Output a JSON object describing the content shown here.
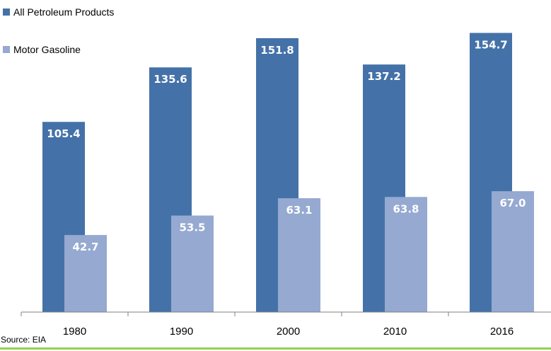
{
  "chart_data": {
    "type": "bar",
    "categories": [
      "1980",
      "1990",
      "2000",
      "2010",
      "2016"
    ],
    "series": [
      {
        "name": "All Petroleum Products",
        "color": "#4472a8",
        "values": [
          105.4,
          135.6,
          151.8,
          137.2,
          154.7
        ]
      },
      {
        "name": "Motor Gasoline",
        "color": "#95a9d1",
        "values": [
          42.7,
          53.5,
          63.1,
          63.8,
          67.0
        ]
      }
    ],
    "title": "",
    "xlabel": "",
    "ylabel": "",
    "ylim": [
      0,
      160
    ],
    "grid": false,
    "legend_position": "top-left",
    "data_labels": true,
    "source": "Source: EIA"
  }
}
